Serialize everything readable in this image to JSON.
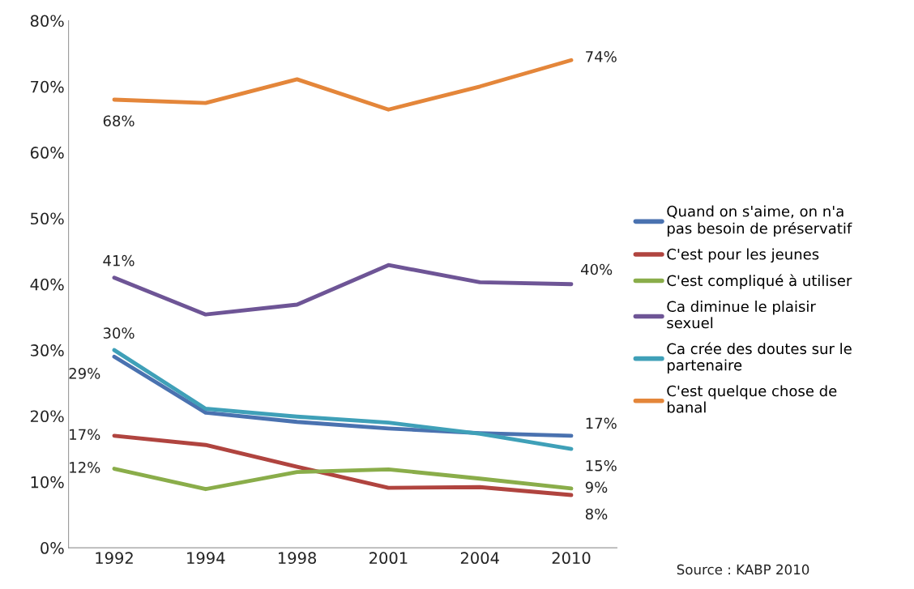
{
  "chart_data": {
    "type": "line",
    "categories": [
      "1992",
      "1994",
      "1998",
      "2001",
      "2004",
      "2010"
    ],
    "series": [
      {
        "name": "Quand on s'aime, on n'a pas besoin de préservatif",
        "color": "#4a72b0",
        "values": [
          29,
          20.5,
          19.1,
          18.1,
          17.4,
          17
        ],
        "value_labels": [
          "29%",
          null,
          null,
          null,
          null,
          "17%"
        ]
      },
      {
        "name": "C'est pour les jeunes",
        "color": "#b0443f",
        "values": [
          17,
          15.6,
          12.3,
          9.1,
          9.2,
          8
        ],
        "value_labels": [
          "17%",
          null,
          null,
          null,
          null,
          "8%"
        ]
      },
      {
        "name": "C'est compliqué à utiliser",
        "color": "#8aad4a",
        "values": [
          12,
          8.9,
          11.5,
          11.9,
          10.5,
          9
        ],
        "value_labels": [
          "12%",
          null,
          null,
          null,
          null,
          "9%"
        ]
      },
      {
        "name": "Ca diminue le plaisir sexuel",
        "color": "#6e5596",
        "values": [
          41,
          35.4,
          36.9,
          42.9,
          40.3,
          40
        ],
        "value_labels": [
          "41%",
          null,
          null,
          null,
          null,
          "40%"
        ]
      },
      {
        "name": "Ca crée des doutes sur le partenaire",
        "color": "#3fa0b8",
        "values": [
          30,
          21.1,
          19.9,
          19,
          17.3,
          15
        ],
        "value_labels": [
          "30%",
          null,
          null,
          null,
          null,
          "15%"
        ]
      },
      {
        "name": "C'est quelque chose de banal",
        "color": "#e4863a",
        "values": [
          68,
          67.5,
          71.1,
          66.5,
          70,
          74
        ],
        "value_labels": [
          "68%",
          null,
          null,
          null,
          null,
          "74%"
        ]
      }
    ],
    "ylim": [
      0,
      80
    ],
    "yticks": [
      {
        "value": 0,
        "label": "0%"
      },
      {
        "value": 10,
        "label": "10%"
      },
      {
        "value": 20,
        "label": "20%"
      },
      {
        "value": 30,
        "label": "30%"
      },
      {
        "value": 40,
        "label": "40%"
      },
      {
        "value": 50,
        "label": "50%"
      },
      {
        "value": 60,
        "label": "60%"
      },
      {
        "value": 70,
        "label": "70%"
      },
      {
        "value": 80,
        "label": "80%"
      }
    ],
    "grid": false,
    "legend": "right",
    "marker": "none",
    "line_style": "solid",
    "annotations": [
      "Source : KABP 2010"
    ]
  }
}
